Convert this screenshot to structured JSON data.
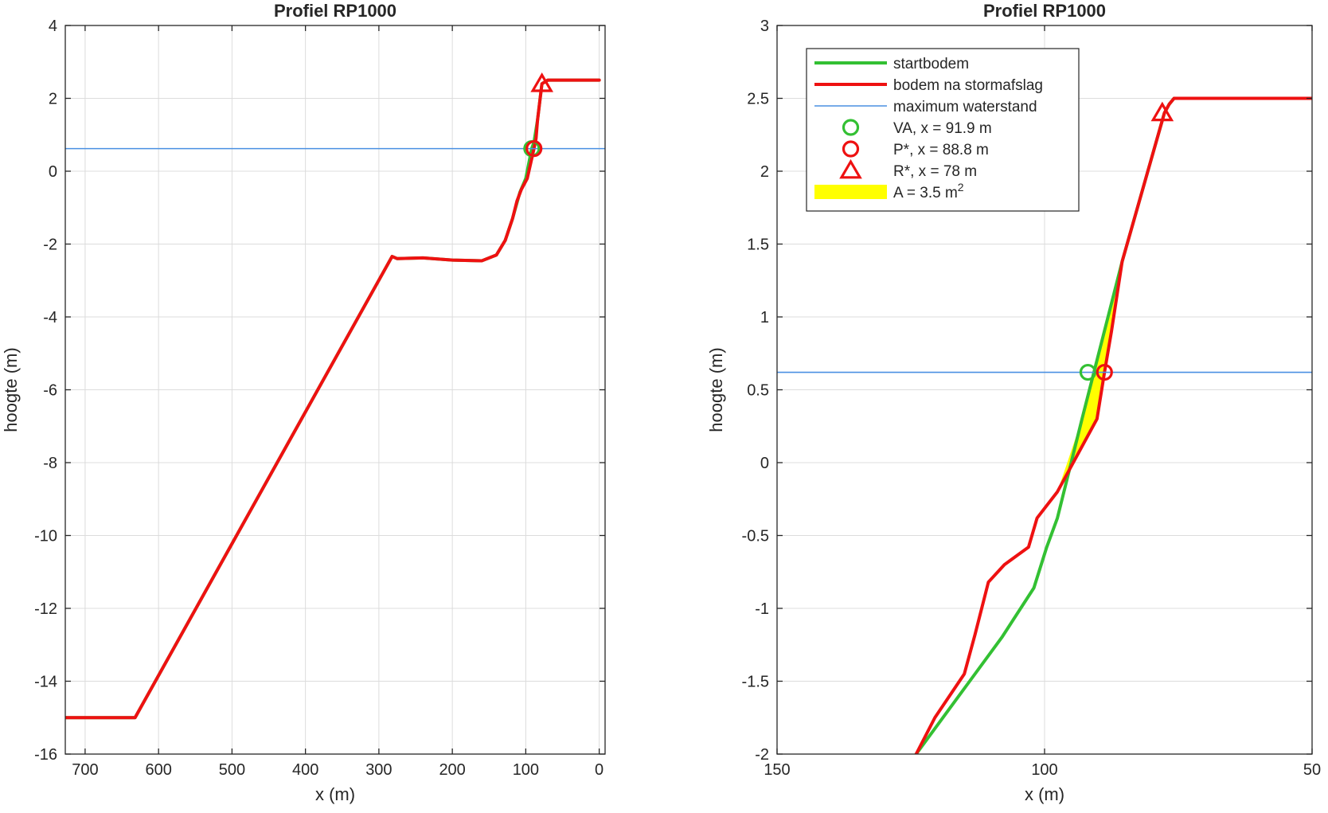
{
  "colors": {
    "start": "#33c033",
    "storm": "#ee1111",
    "water": "#4a90e2",
    "area": "#ffff00",
    "grid": "#dcdcdc",
    "axis": "#262626"
  },
  "chart_data": [
    {
      "type": "line",
      "title": "Profiel RP1000",
      "xlabel": "x (m)",
      "ylabel": "hoogte (m)",
      "xlim": [
        727,
        -8
      ],
      "x_reversed": true,
      "ylim": [
        -16,
        4
      ],
      "xticks": [
        700,
        600,
        500,
        400,
        300,
        200,
        100,
        0
      ],
      "yticks": [
        -16,
        -14,
        -12,
        -10,
        -8,
        -6,
        -4,
        -2,
        0,
        2,
        4
      ],
      "grid": true,
      "series": [
        {
          "name": "startbodem",
          "color_key": "start",
          "x": [
            727,
            632,
            282,
            275,
            240,
            200,
            160,
            140,
            128,
            118,
            108,
            100,
            91.9,
            88.8,
            84,
            78,
            70,
            0
          ],
          "y": [
            -15,
            -15,
            -2.34,
            -2.4,
            -2.38,
            -2.44,
            -2.46,
            -2.3,
            -1.9,
            -1.3,
            -0.58,
            -0.2,
            0.62,
            0.8,
            1.4,
            2.4,
            2.5,
            2.5
          ]
        },
        {
          "name": "bodem na stormafslag",
          "color_key": "storm",
          "x": [
            727,
            632,
            282,
            275,
            240,
            200,
            160,
            140,
            128,
            118,
            112,
            106,
            98,
            88.8,
            86,
            84,
            78,
            70,
            0
          ],
          "y": [
            -15,
            -15,
            -2.34,
            -2.4,
            -2.38,
            -2.44,
            -2.46,
            -2.3,
            -1.9,
            -1.3,
            -0.82,
            -0.5,
            -0.2,
            0.62,
            0.9,
            1.4,
            2.4,
            2.5,
            2.5
          ]
        },
        {
          "name": "maximum waterstand",
          "color_key": "water",
          "x": [
            727,
            -8
          ],
          "y": [
            0.62,
            0.62
          ]
        }
      ],
      "markers": [
        {
          "name": "VA",
          "shape": "circle",
          "color_key": "start",
          "x": 91.9,
          "y": 0.62
        },
        {
          "name": "P*",
          "shape": "circle",
          "color_key": "storm",
          "x": 88.8,
          "y": 0.62
        },
        {
          "name": "R*",
          "shape": "triangle",
          "color_key": "storm",
          "x": 78,
          "y": 2.4
        }
      ]
    },
    {
      "type": "line",
      "title": "Profiel RP1000",
      "xlabel": "x (m)",
      "ylabel": "hoogte (m)",
      "xlim": [
        150,
        50
      ],
      "x_reversed": true,
      "ylim": [
        -2,
        3
      ],
      "xticks": [
        150,
        100,
        50
      ],
      "yticks": [
        -2,
        -1.5,
        -1,
        -0.5,
        0,
        0.5,
        1,
        1.5,
        2,
        2.5,
        3
      ],
      "grid": true,
      "series": [
        {
          "name": "startbodem",
          "color_key": "start",
          "x": [
            124,
            114,
            108,
            102,
            99.6,
            97.6,
            93,
            85.5,
            77.6,
            76.7,
            75.8,
            50
          ],
          "y": [
            -2,
            -1.5,
            -1.2,
            -0.86,
            -0.58,
            -0.38,
            0.3,
            1.38,
            2.4,
            2.46,
            2.5,
            2.5
          ]
        },
        {
          "name": "bodem na stormafslag",
          "color_key": "storm",
          "x": [
            124,
            120.5,
            115,
            113,
            110.5,
            107.5,
            103,
            101.4,
            97.6,
            90.2,
            88.8,
            87.5,
            85.5,
            77.6,
            76.7,
            75.8,
            50
          ],
          "y": [
            -2,
            -1.75,
            -1.45,
            -1.18,
            -0.82,
            -0.7,
            -0.58,
            -0.38,
            -0.2,
            0.3,
            0.62,
            0.9,
            1.38,
            2.4,
            2.46,
            2.5,
            2.5
          ]
        },
        {
          "name": "maximum waterstand",
          "color_key": "water",
          "x": [
            150,
            50
          ],
          "y": [
            0.62,
            0.62
          ]
        }
      ],
      "area": {
        "name": "A",
        "value": 3.5,
        "unit": "m2",
        "color_key": "area",
        "x": [
          97.6,
          93,
          85.5,
          87.5,
          88.8,
          90.2,
          97.6
        ],
        "y": [
          -0.2,
          0.3,
          1.38,
          0.9,
          0.62,
          0.3,
          -0.2
        ]
      },
      "markers": [
        {
          "name": "VA",
          "shape": "circle",
          "color_key": "start",
          "x": 91.9,
          "y": 0.62
        },
        {
          "name": "P*",
          "shape": "circle",
          "color_key": "storm",
          "x": 88.8,
          "y": 0.62
        },
        {
          "name": "R*",
          "shape": "triangle",
          "color_key": "storm",
          "x": 78,
          "y": 2.4
        }
      ],
      "legend": {
        "placement": "top-left",
        "entries": [
          {
            "label": "startbodem",
            "kind": "line",
            "color_key": "start"
          },
          {
            "label": "bodem na stormafslag",
            "kind": "line",
            "color_key": "storm"
          },
          {
            "label": "maximum waterstand",
            "kind": "thinline",
            "color_key": "water"
          },
          {
            "label": "VA, x = 91.9 m",
            "kind": "circle",
            "color_key": "start"
          },
          {
            "label": "P*, x = 88.8 m",
            "kind": "circle",
            "color_key": "storm"
          },
          {
            "label": "R*, x = 78 m",
            "kind": "triangle",
            "color_key": "storm"
          },
          {
            "label": "A = 3.5 m",
            "superscript": "2",
            "kind": "patch",
            "color_key": "area"
          }
        ]
      }
    }
  ]
}
